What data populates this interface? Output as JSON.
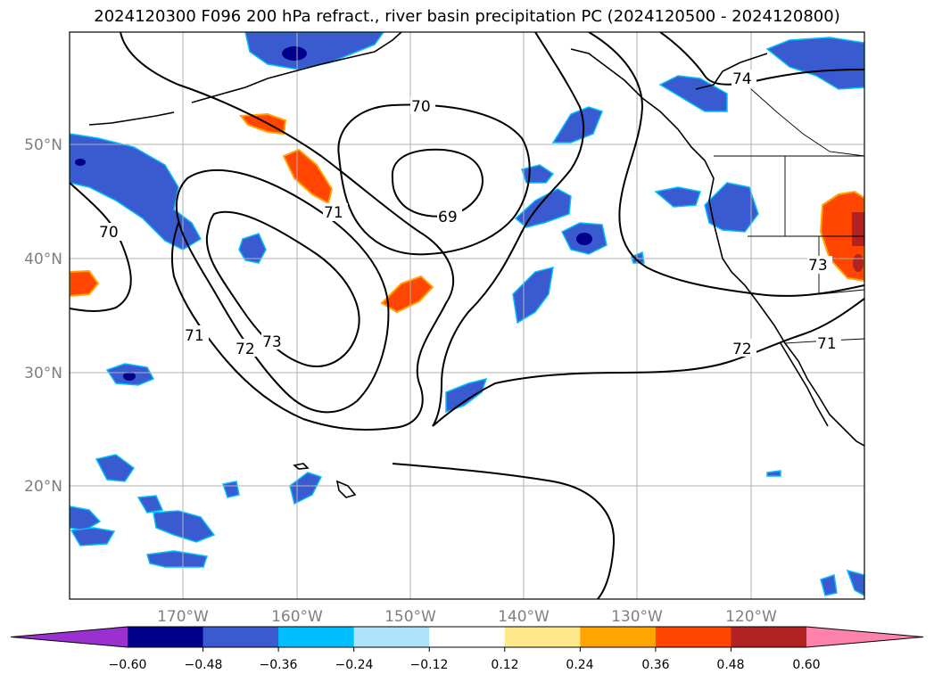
{
  "title": "2024120300 F096 200 hPa refract., river basin precipitation PC (2024120500 - 2024120800)",
  "map": {
    "lat_labels": [
      "50°N",
      "40°N",
      "30°N",
      "20°N"
    ],
    "lon_labels": [
      "170°W",
      "160°W",
      "150°W",
      "140°W",
      "130°W",
      "120°W"
    ],
    "contour_labels": [
      "70",
      "69",
      "71",
      "70",
      "71",
      "72",
      "73",
      "74",
      "73",
      "72",
      "71"
    ]
  },
  "colorbar": {
    "ticks": [
      "−0.60",
      "−0.48",
      "−0.36",
      "−0.24",
      "−0.12",
      "0.12",
      "0.24",
      "0.36",
      "0.48",
      "0.60"
    ],
    "colors": [
      "#9b30d0",
      "#00008b",
      "#3a5bd0",
      "#00bfff",
      "#aee4fa",
      "#ffffff",
      "#fde98c",
      "#ffa500",
      "#ff4500",
      "#b22222",
      "#ff82ab"
    ]
  },
  "colors": {
    "negative_fill": "#3a5bd0",
    "negative_edge": "#00bfff",
    "negative_core": "#00008b",
    "positive_fill": "#ff4500",
    "positive_edge": "#ffa500",
    "contour": "#000000",
    "grid": "#b0b0b0"
  }
}
